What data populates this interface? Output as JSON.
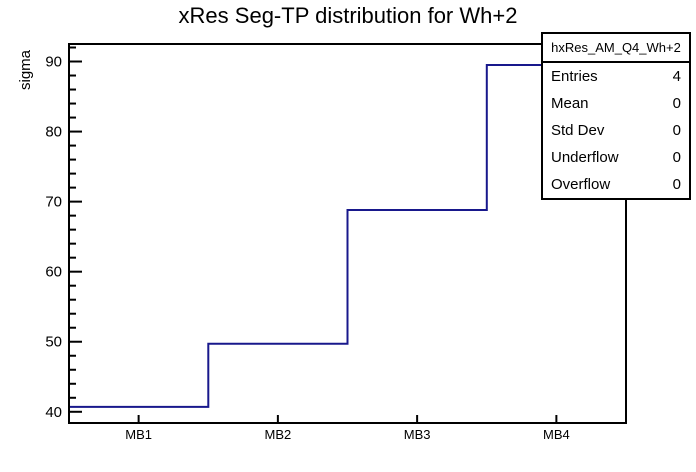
{
  "chart_data": {
    "type": "step-histogram",
    "title": "xRes Seg-TP distribution for Wh+2",
    "ylabel": "sigma",
    "xlabel": "",
    "categories": [
      "MB1",
      "MB2",
      "MB3",
      "MB4"
    ],
    "values": [
      40.7,
      49.7,
      68.8,
      89.5
    ],
    "ylim": [
      38.4,
      92.5
    ],
    "y_major_ticks": [
      40,
      50,
      60,
      70,
      80,
      90
    ],
    "y_minor_step": 2,
    "grid": false,
    "line_color": "#18188c",
    "frame_color": "#000000",
    "background_color": "#ffffff",
    "legend_position": "top-right",
    "stats": {
      "header": "hxRes_AM_Q4_Wh+2",
      "rows": [
        {
          "label": "Entries",
          "value": "4"
        },
        {
          "label": "Mean",
          "value": "0"
        },
        {
          "label": "Std Dev",
          "value": "0"
        },
        {
          "label": "Underflow",
          "value": "0"
        },
        {
          "label": "Overflow",
          "value": "0"
        }
      ]
    }
  }
}
